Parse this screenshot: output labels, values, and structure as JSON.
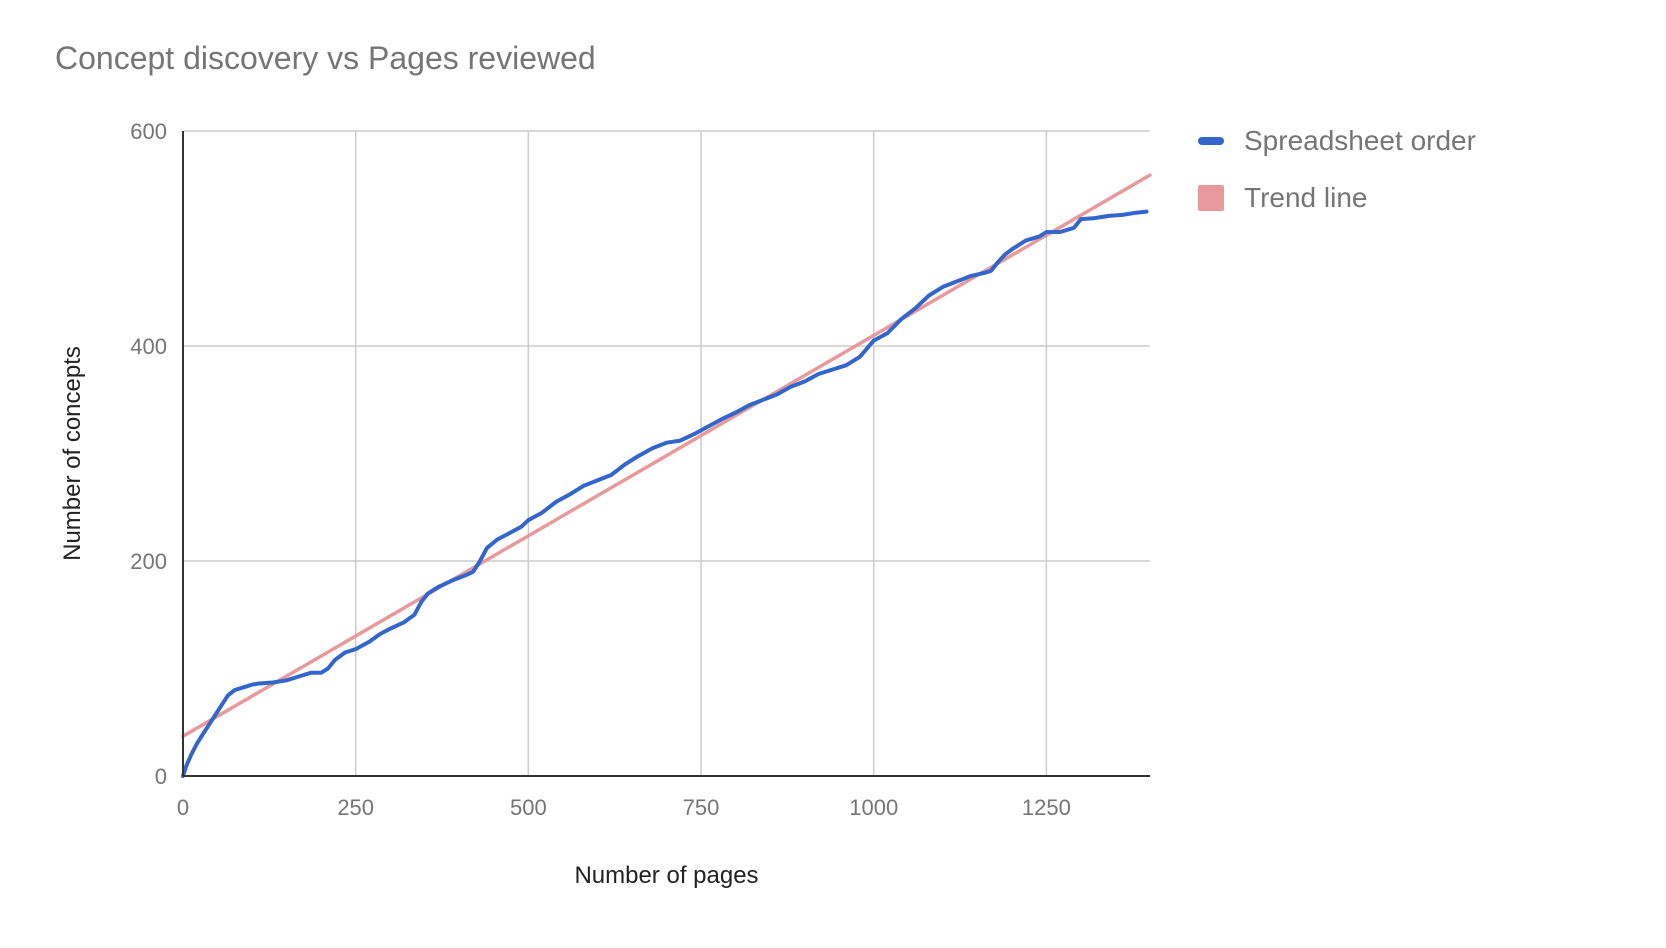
{
  "chart_data": {
    "type": "line",
    "title": "Concept discovery vs Pages reviewed",
    "xlabel": "Number of pages",
    "ylabel": "Number of concepts",
    "xlim": [
      0,
      1400
    ],
    "ylim": [
      0,
      600
    ],
    "x_ticks": [
      0,
      250,
      500,
      750,
      1000,
      1250
    ],
    "y_ticks": [
      0,
      200,
      400,
      600
    ],
    "grid": true,
    "legend_position": "right",
    "series": [
      {
        "name": "Spreadsheet order",
        "color": "#3366cc",
        "x": [
          0,
          5,
          12,
          20,
          28,
          38,
          45,
          55,
          65,
          75,
          90,
          100,
          110,
          130,
          150,
          170,
          185,
          200,
          210,
          220,
          235,
          250,
          270,
          285,
          300,
          320,
          335,
          345,
          355,
          370,
          390,
          410,
          420,
          430,
          440,
          455,
          470,
          490,
          500,
          520,
          540,
          560,
          580,
          600,
          620,
          640,
          660,
          680,
          700,
          720,
          740,
          760,
          780,
          800,
          820,
          840,
          860,
          880,
          900,
          920,
          940,
          960,
          980,
          1000,
          1020,
          1040,
          1060,
          1080,
          1100,
          1120,
          1140,
          1160,
          1170,
          1180,
          1190,
          1200,
          1220,
          1240,
          1250,
          1270,
          1290,
          1300,
          1320,
          1340,
          1360,
          1380,
          1395
        ],
        "values": [
          0,
          10,
          20,
          30,
          38,
          48,
          55,
          65,
          75,
          80,
          83,
          85,
          86,
          87,
          89,
          93,
          96,
          96,
          100,
          108,
          115,
          118,
          125,
          132,
          137,
          143,
          150,
          162,
          170,
          176,
          182,
          187,
          190,
          200,
          212,
          220,
          225,
          232,
          238,
          245,
          255,
          262,
          270,
          275,
          280,
          290,
          298,
          305,
          310,
          312,
          318,
          325,
          332,
          338,
          345,
          350,
          355,
          362,
          367,
          374,
          378,
          382,
          390,
          405,
          412,
          425,
          435,
          447,
          455,
          460,
          465,
          468,
          470,
          478,
          485,
          490,
          498,
          502,
          506,
          506,
          510,
          518,
          519,
          521,
          522,
          524,
          525
        ]
      },
      {
        "name": "Trend line",
        "color": "#e8999b",
        "x": [
          0,
          1400
        ],
        "values": [
          37,
          559
        ]
      }
    ]
  }
}
